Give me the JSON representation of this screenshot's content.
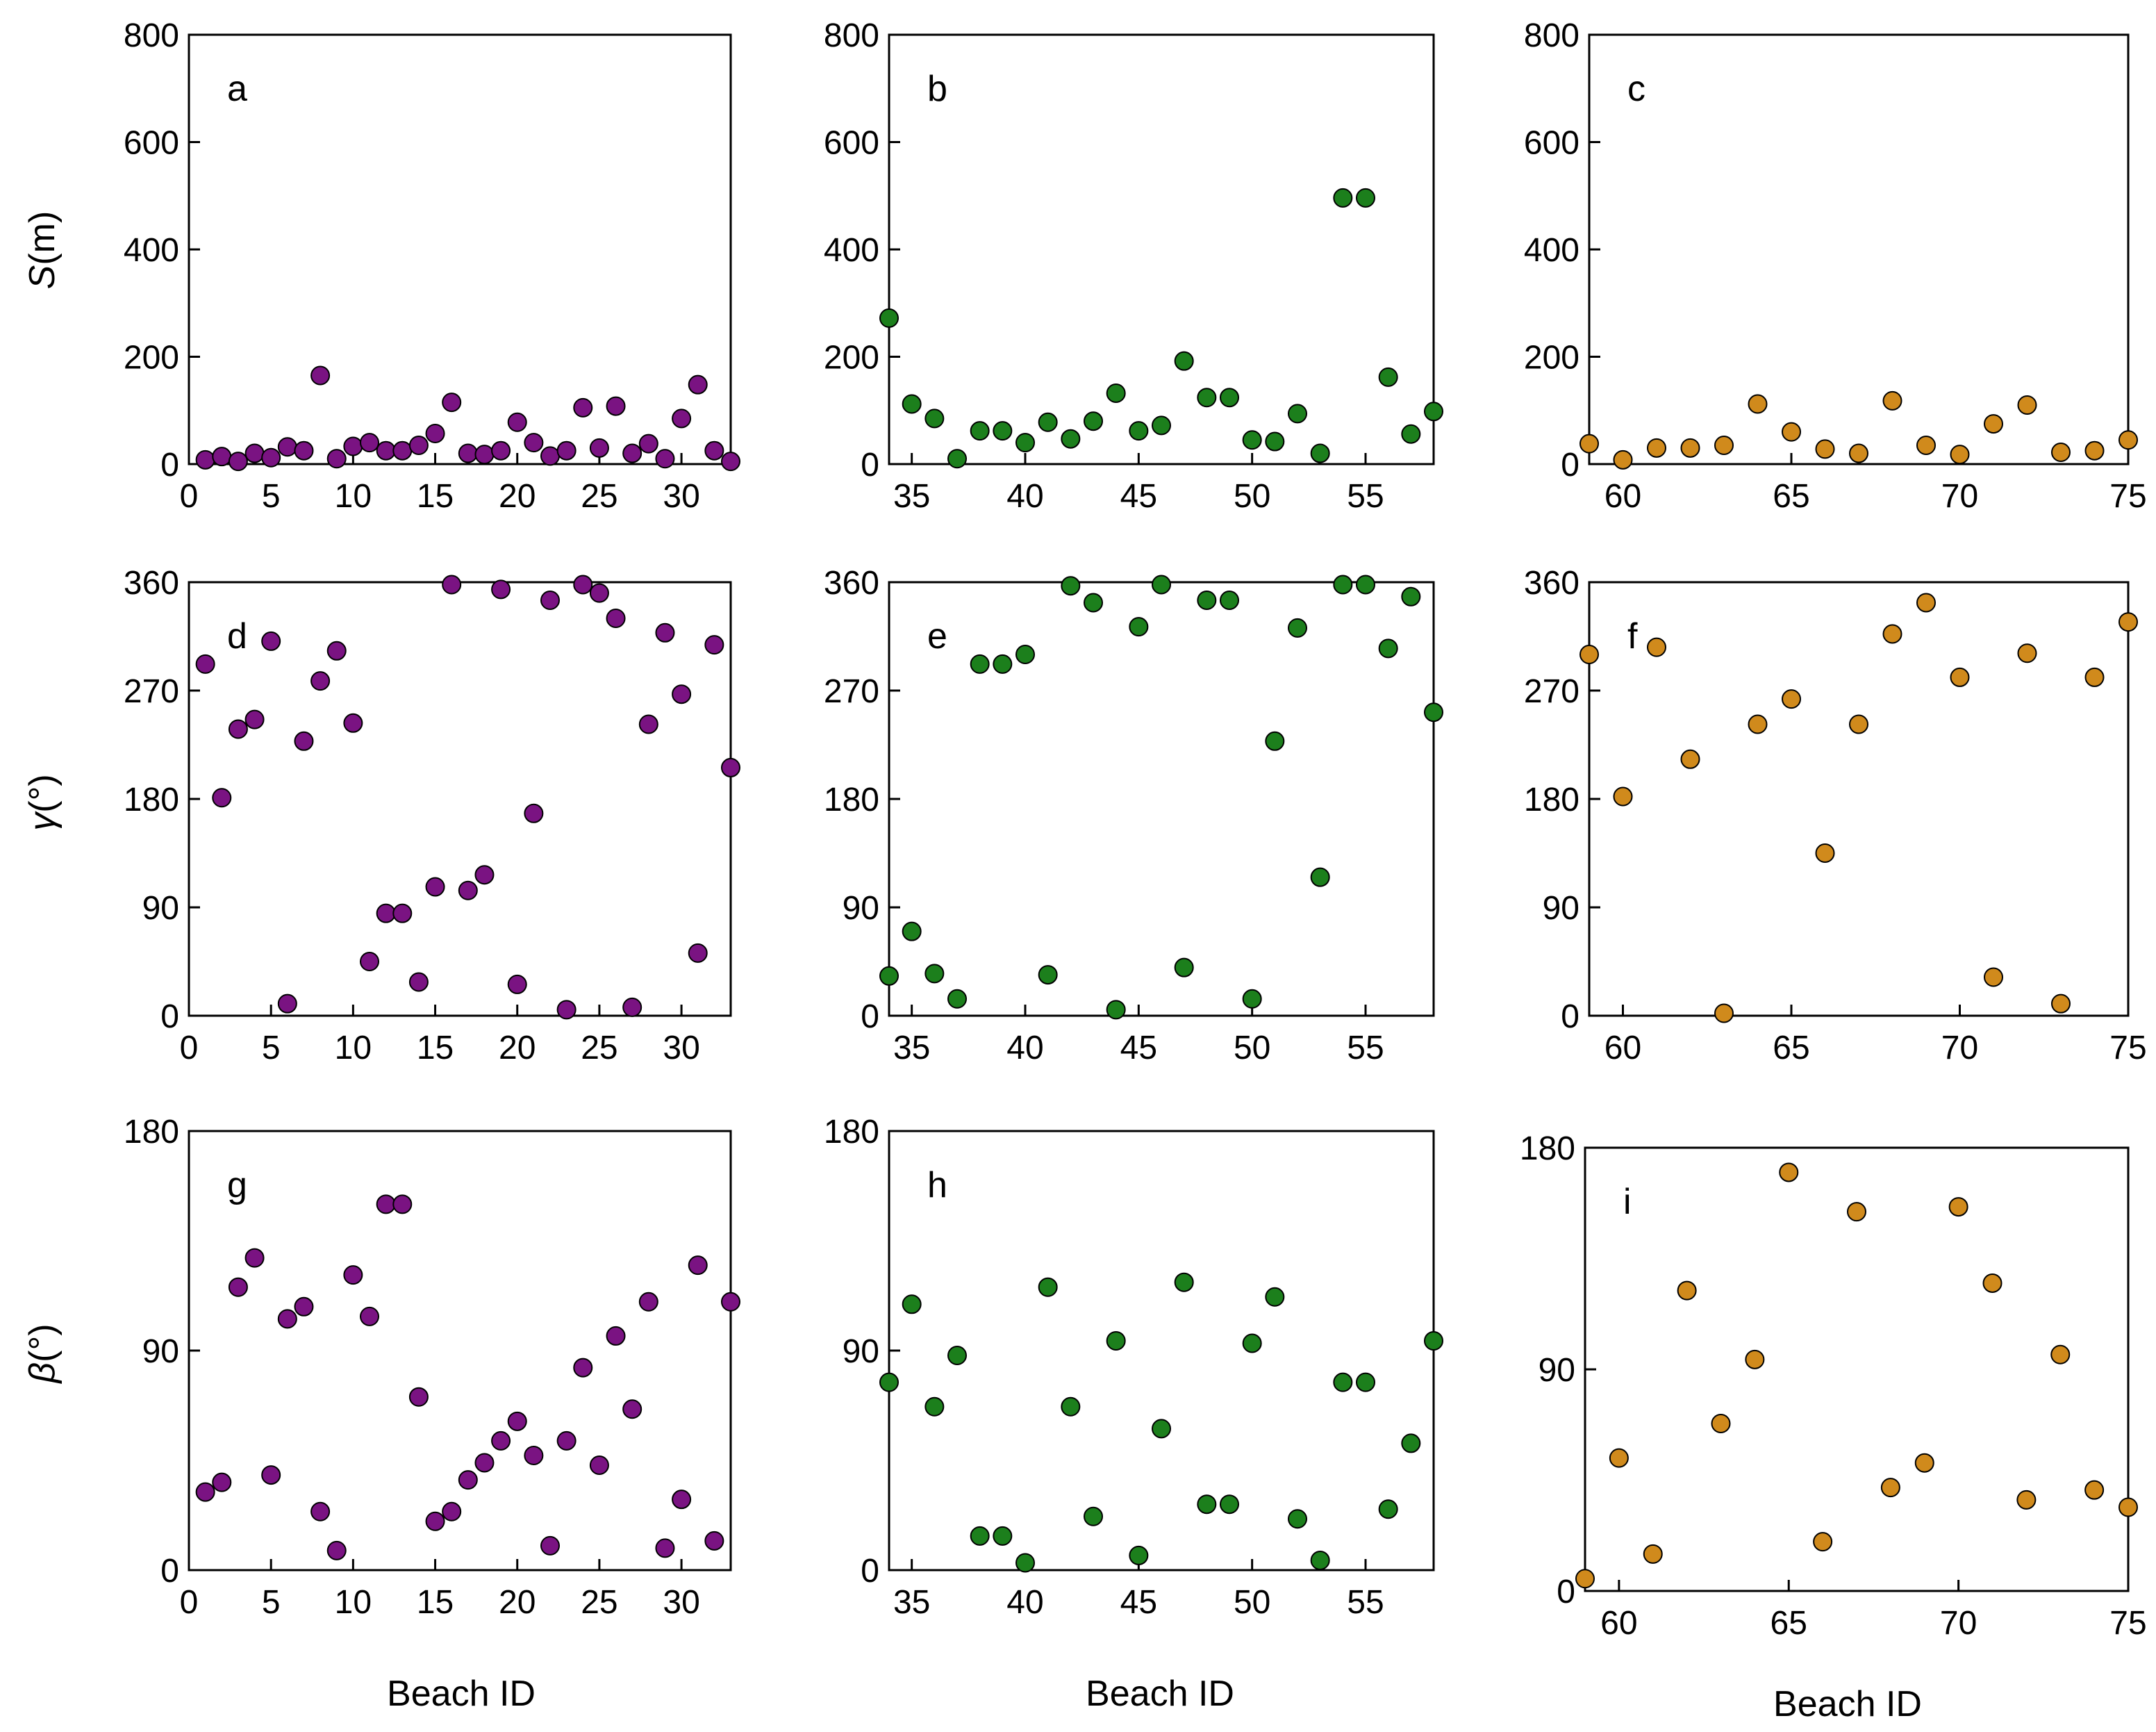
{
  "figure": {
    "x_axis_title": "Beach ID",
    "y_axis_titles": [
      {
        "symbol": "S",
        "unit": "(m)"
      },
      {
        "symbol": "γ",
        "unit": "(°)"
      },
      {
        "symbol": "β",
        "unit": "(°)"
      }
    ]
  },
  "colors": {
    "group1": "#7a1382",
    "group2": "#1c7f1c",
    "group3": "#d08a1c",
    "stroke": "#000000"
  },
  "chart_data": [
    {
      "type": "scatter",
      "label": "a",
      "series_color": "group1",
      "xlim": [
        0,
        33
      ],
      "xticks": [
        0,
        5,
        10,
        15,
        20,
        25,
        30
      ],
      "ylim": [
        0,
        800
      ],
      "yticks": [
        0,
        200,
        400,
        600,
        800
      ],
      "ylabel": "S(m)",
      "x": [
        1,
        2,
        3,
        4,
        5,
        6,
        7,
        8,
        9,
        10,
        11,
        12,
        13,
        14,
        15,
        16,
        17,
        18,
        19,
        20,
        21,
        22,
        23,
        24,
        25,
        26,
        27,
        28,
        29,
        30,
        31,
        32,
        33
      ],
      "y": [
        8,
        14,
        5,
        20,
        12,
        32,
        25,
        165,
        10,
        33,
        40,
        25,
        25,
        35,
        57,
        115,
        20,
        18,
        25,
        78,
        40,
        15,
        25,
        105,
        30,
        108,
        20,
        38,
        10,
        85,
        148,
        25,
        5
      ]
    },
    {
      "type": "scatter",
      "label": "b",
      "series_color": "group2",
      "xlim": [
        34,
        58
      ],
      "xticks": [
        35,
        40,
        45,
        50,
        55
      ],
      "ylim": [
        0,
        800
      ],
      "yticks": [
        0,
        200,
        400,
        600,
        800
      ],
      "ylabel": "",
      "x": [
        34,
        35,
        36,
        37,
        38,
        39,
        40,
        41,
        42,
        43,
        44,
        45,
        46,
        47,
        48,
        49,
        50,
        51,
        52,
        53,
        54,
        55,
        56,
        57,
        58
      ],
      "y": [
        272,
        112,
        85,
        10,
        62,
        62,
        40,
        78,
        47,
        80,
        132,
        62,
        72,
        192,
        124,
        124,
        45,
        42,
        94,
        20,
        496,
        496,
        162,
        56,
        98
      ]
    },
    {
      "type": "scatter",
      "label": "c",
      "series_color": "group3",
      "xlim": [
        59,
        75
      ],
      "xticks": [
        60,
        65,
        70,
        75
      ],
      "ylim": [
        0,
        800
      ],
      "yticks": [
        0,
        200,
        400,
        600,
        800
      ],
      "ylabel": "",
      "x": [
        59,
        60,
        61,
        62,
        63,
        64,
        65,
        66,
        67,
        68,
        69,
        70,
        71,
        72,
        73,
        74,
        75
      ],
      "y": [
        38,
        8,
        30,
        30,
        35,
        112,
        60,
        28,
        20,
        118,
        35,
        18,
        75,
        110,
        22,
        25,
        45
      ]
    },
    {
      "type": "scatter",
      "label": "d",
      "series_color": "group1",
      "xlim": [
        0,
        33
      ],
      "xticks": [
        0,
        5,
        10,
        15,
        20,
        25,
        30
      ],
      "ylim": [
        0,
        360
      ],
      "yticks": [
        0,
        90,
        180,
        270,
        360
      ],
      "ylabel": "γ(°)",
      "x": [
        1,
        2,
        3,
        4,
        5,
        6,
        7,
        8,
        9,
        10,
        11,
        12,
        13,
        14,
        15,
        16,
        17,
        18,
        19,
        20,
        21,
        22,
        23,
        24,
        25,
        26,
        27,
        28,
        29,
        30,
        31,
        32,
        33
      ],
      "y": [
        292,
        181,
        238,
        246,
        311,
        10,
        228,
        278,
        303,
        243,
        45,
        85,
        85,
        28,
        107,
        358,
        104,
        117,
        354,
        26,
        168,
        345,
        5,
        358,
        351,
        330,
        7,
        242,
        318,
        267,
        52,
        308,
        206
      ]
    },
    {
      "type": "scatter",
      "label": "e",
      "series_color": "group2",
      "xlim": [
        34,
        58
      ],
      "xticks": [
        35,
        40,
        45,
        50,
        55
      ],
      "ylim": [
        0,
        360
      ],
      "yticks": [
        0,
        90,
        180,
        270,
        360
      ],
      "ylabel": "",
      "x": [
        34,
        35,
        36,
        37,
        38,
        39,
        40,
        41,
        42,
        43,
        44,
        45,
        46,
        47,
        48,
        49,
        50,
        51,
        52,
        53,
        54,
        55,
        56,
        57,
        58
      ],
      "y": [
        33,
        70,
        35,
        14,
        292,
        292,
        300,
        34,
        357,
        343,
        5,
        323,
        358,
        40,
        345,
        345,
        14,
        228,
        322,
        115,
        358,
        358,
        305,
        348,
        252
      ]
    },
    {
      "type": "scatter",
      "label": "f",
      "series_color": "group3",
      "xlim": [
        59,
        75
      ],
      "xticks": [
        60,
        65,
        70,
        75
      ],
      "ylim": [
        0,
        360
      ],
      "yticks": [
        0,
        90,
        180,
        270,
        360
      ],
      "ylabel": "",
      "x": [
        59,
        60,
        61,
        62,
        63,
        64,
        65,
        66,
        67,
        68,
        69,
        70,
        71,
        72,
        73,
        74,
        75
      ],
      "y": [
        300,
        182,
        306,
        213,
        2,
        242,
        263,
        135,
        242,
        317,
        343,
        281,
        32,
        301,
        10,
        281,
        327
      ]
    },
    {
      "type": "scatter",
      "label": "g",
      "series_color": "group1",
      "xlim": [
        0,
        33
      ],
      "xticks": [
        0,
        5,
        10,
        15,
        20,
        25,
        30
      ],
      "ylim": [
        0,
        180
      ],
      "yticks": [
        0,
        90,
        180
      ],
      "ylabel": "β(°)",
      "x": [
        1,
        2,
        3,
        4,
        5,
        6,
        7,
        8,
        9,
        10,
        11,
        12,
        13,
        14,
        15,
        16,
        17,
        18,
        19,
        20,
        21,
        22,
        23,
        24,
        25,
        26,
        27,
        28,
        29,
        30,
        31,
        32,
        33
      ],
      "y": [
        32,
        36,
        116,
        128,
        39,
        103,
        108,
        24,
        8,
        121,
        104,
        150,
        150,
        71,
        20,
        24,
        37,
        44,
        53,
        61,
        47,
        10,
        53,
        83,
        43,
        96,
        66,
        110,
        9,
        29,
        125,
        12,
        110
      ]
    },
    {
      "type": "scatter",
      "label": "h",
      "series_color": "group2",
      "xlim": [
        34,
        58
      ],
      "xticks": [
        35,
        40,
        45,
        50,
        55
      ],
      "ylim": [
        0,
        180
      ],
      "yticks": [
        0,
        90,
        180
      ],
      "ylabel": "",
      "x": [
        34,
        35,
        36,
        37,
        38,
        39,
        40,
        41,
        42,
        43,
        44,
        45,
        46,
        47,
        48,
        49,
        50,
        51,
        52,
        53,
        54,
        55,
        56,
        57,
        58
      ],
      "y": [
        77,
        109,
        67,
        88,
        14,
        14,
        3,
        116,
        67,
        22,
        94,
        6,
        58,
        118,
        27,
        27,
        93,
        112,
        21,
        4,
        77,
        77,
        25,
        52,
        94
      ]
    },
    {
      "type": "scatter",
      "label": "i",
      "series_color": "group3",
      "xlim": [
        59,
        75
      ],
      "xticks": [
        60,
        65,
        70,
        75
      ],
      "ylim": [
        0,
        180
      ],
      "yticks": [
        0,
        90,
        180
      ],
      "ylabel": "",
      "x": [
        59,
        60,
        61,
        62,
        63,
        64,
        65,
        66,
        67,
        68,
        69,
        70,
        71,
        72,
        73,
        74,
        75
      ],
      "y": [
        5,
        54,
        15,
        122,
        68,
        94,
        170,
        20,
        154,
        42,
        52,
        156,
        125,
        37,
        96,
        41,
        34
      ]
    }
  ]
}
